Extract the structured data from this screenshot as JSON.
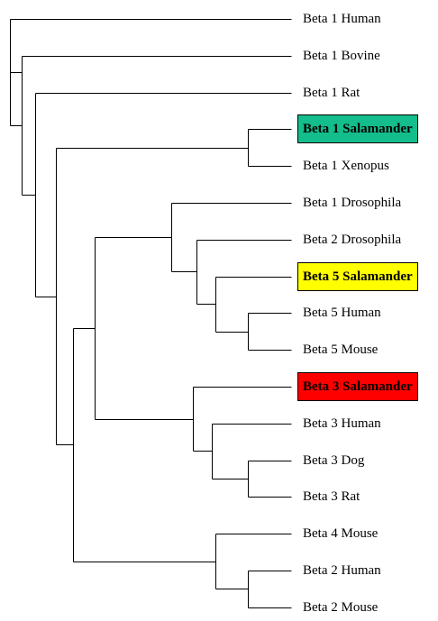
{
  "leaves": [
    {
      "label": "Beta 1 Human",
      "highlight": ""
    },
    {
      "label": "Beta 1 Bovine",
      "highlight": ""
    },
    {
      "label": "Beta 1 Rat",
      "highlight": ""
    },
    {
      "label": "Beta 1 Salamander",
      "highlight": "#13bd8c"
    },
    {
      "label": "Beta 1 Xenopus",
      "highlight": ""
    },
    {
      "label": "Beta 1 Drosophila",
      "highlight": ""
    },
    {
      "label": "Beta 2 Drosophila",
      "highlight": ""
    },
    {
      "label": "Beta 5 Salamander",
      "highlight": "#ffff00"
    },
    {
      "label": "Beta 5 Human",
      "highlight": ""
    },
    {
      "label": "Beta 5 Mouse",
      "highlight": ""
    },
    {
      "label": "Beta 3 Salamander",
      "highlight": "#ff0000"
    },
    {
      "label": "Beta 3 Human",
      "highlight": ""
    },
    {
      "label": "Beta 3 Dog",
      "highlight": ""
    },
    {
      "label": "Beta 3 Rat",
      "highlight": ""
    },
    {
      "label": "Beta 4 Mouse",
      "highlight": ""
    },
    {
      "label": "Beta 2 Human",
      "highlight": ""
    },
    {
      "label": "Beta 2 Mouse",
      "highlight": ""
    }
  ]
}
